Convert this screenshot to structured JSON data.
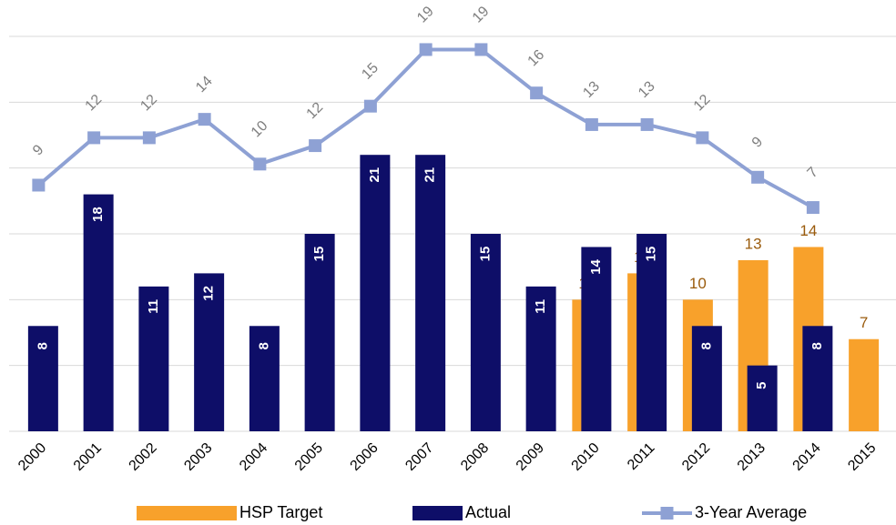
{
  "chart_data": {
    "type": "bar",
    "categories": [
      "2000",
      "2001",
      "2002",
      "2003",
      "2004",
      "2005",
      "2006",
      "2007",
      "2008",
      "2009",
      "2010",
      "2011",
      "2012",
      "2013",
      "2014",
      "2015"
    ],
    "series": [
      {
        "name": "HSP Target",
        "color": "#f8a12b",
        "values": [
          null,
          null,
          null,
          null,
          null,
          null,
          null,
          null,
          null,
          null,
          10,
          12,
          10,
          13,
          14,
          7
        ]
      },
      {
        "name": "Actual",
        "color": "#0e0e68",
        "values": [
          8,
          18,
          11,
          12,
          8,
          15,
          21,
          21,
          15,
          11,
          14,
          15,
          8,
          5,
          8,
          null
        ]
      },
      {
        "name": "3-Year Average",
        "color": "#8ea1d4",
        "type": "line",
        "axis": "y2",
        "values": [
          8.7,
          12.3,
          12.3,
          13.7,
          10.3,
          11.7,
          14.7,
          19,
          19,
          15.7,
          13.3,
          13.3,
          12.3,
          9.3,
          7,
          null
        ],
        "value_labels": [
          "9",
          "12",
          "12",
          "14",
          "10",
          "12",
          "15",
          "19",
          "19",
          "16",
          "13",
          "13",
          "12",
          "9",
          "7",
          null
        ]
      }
    ],
    "ylim": [
      0,
      30
    ],
    "yticks": [
      0,
      5,
      10,
      15,
      20,
      25,
      30
    ],
    "y2lim": [
      -10,
      20
    ],
    "grid": true,
    "legend": "bottom"
  }
}
